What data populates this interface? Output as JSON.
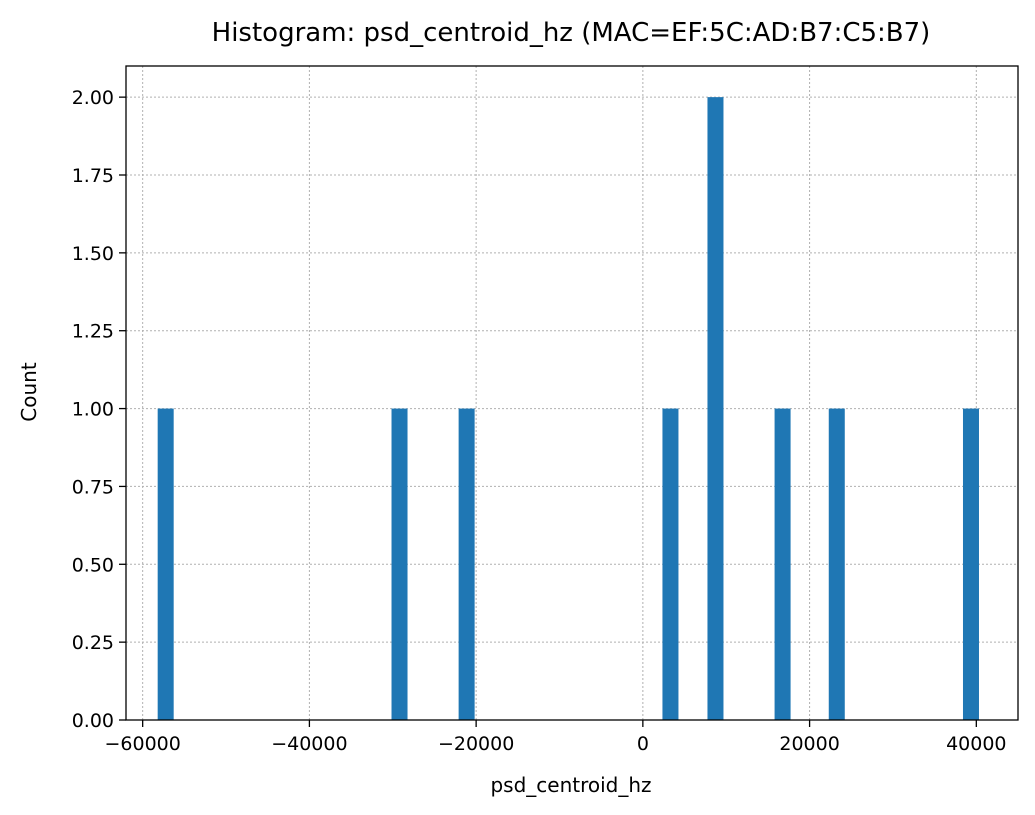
{
  "chart_data": {
    "type": "bar",
    "title": "Histogram: psd_centroid_hz (MAC=EF:5C:AD:B7:C5:B7)",
    "xlabel": "psd_centroid_hz",
    "ylabel": "Count",
    "xlim": [
      -62000,
      45000
    ],
    "ylim": [
      0,
      2.1
    ],
    "grid": true,
    "bar_color": "#1f77b4",
    "bin_width": 1920,
    "bars": [
      {
        "x_start": -58200,
        "count": 1
      },
      {
        "x_start": -30150,
        "count": 1
      },
      {
        "x_start": -22100,
        "count": 1
      },
      {
        "x_start": 2350,
        "count": 1
      },
      {
        "x_start": 7750,
        "count": 2
      },
      {
        "x_start": 15800,
        "count": 1
      },
      {
        "x_start": 22300,
        "count": 1
      },
      {
        "x_start": 38400,
        "count": 1
      }
    ],
    "x_ticks": [
      {
        "value": -60000,
        "label": "−60000"
      },
      {
        "value": -40000,
        "label": "−40000"
      },
      {
        "value": -20000,
        "label": "−20000"
      },
      {
        "value": 0,
        "label": "0"
      },
      {
        "value": 20000,
        "label": "20000"
      },
      {
        "value": 40000,
        "label": "40000"
      }
    ],
    "y_ticks": [
      {
        "value": 0,
        "label": "0.00"
      },
      {
        "value": 0.25,
        "label": "0.25"
      },
      {
        "value": 0.5,
        "label": "0.50"
      },
      {
        "value": 0.75,
        "label": "0.75"
      },
      {
        "value": 1,
        "label": "1.00"
      },
      {
        "value": 1.25,
        "label": "1.25"
      },
      {
        "value": 1.5,
        "label": "1.50"
      },
      {
        "value": 1.75,
        "label": "1.75"
      },
      {
        "value": 2,
        "label": "2.00"
      }
    ]
  }
}
